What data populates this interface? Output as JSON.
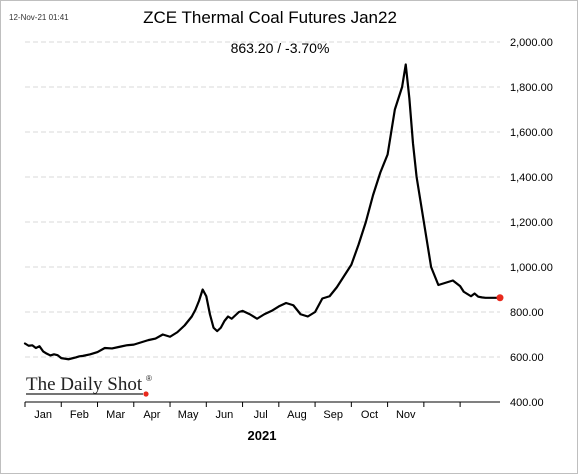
{
  "timestamp": "12-Nov-21 01:41",
  "chart_data": {
    "type": "line",
    "title": "ZCE Thermal Coal Futures Jan22",
    "subtitle": "863.20  /  -3.70%",
    "xlabel": "2021",
    "ylabel": "",
    "ylim": [
      400,
      2000
    ],
    "yticks": [
      400,
      600,
      800,
      1000,
      1200,
      1400,
      1600,
      1800,
      2000
    ],
    "ytick_labels": [
      "400.00",
      "600.00",
      "800.00",
      "1,000.00",
      "1,200.00",
      "1,400.00",
      "1,600.00",
      "1,800.00",
      "2,000.00"
    ],
    "xlim": [
      0,
      13.1
    ],
    "xticks": [
      0,
      1,
      2,
      3,
      4,
      5,
      6,
      7,
      8,
      9,
      10,
      11,
      12
    ],
    "month_labels": [
      "Jan",
      "Feb",
      "Mar",
      "Apr",
      "May",
      "Jun",
      "Jul",
      "Aug",
      "Sep",
      "Oct",
      "Nov"
    ],
    "grid": "horizontal",
    "colors": {
      "line": "#000000",
      "last_point": "#e8291c",
      "grid": "#d9d9d9",
      "axis": "#000000"
    },
    "series": [
      {
        "x": [
          0.0,
          0.1,
          0.2,
          0.3,
          0.4,
          0.5,
          0.6,
          0.7,
          0.8,
          0.9,
          1.0,
          1.2,
          1.4,
          1.5,
          1.6,
          1.8,
          2.0,
          2.2,
          2.4,
          2.6,
          2.8,
          3.0,
          3.2,
          3.4,
          3.6,
          3.8,
          4.0,
          4.2,
          4.4,
          4.6,
          4.7,
          4.8,
          4.9,
          5.0,
          5.1,
          5.2,
          5.3,
          5.4,
          5.5,
          5.6,
          5.7,
          5.8,
          5.9,
          6.0,
          6.2,
          6.4,
          6.6,
          6.8,
          7.0,
          7.2,
          7.4,
          7.6,
          7.8,
          8.0,
          8.2,
          8.4,
          8.6,
          8.8,
          9.0,
          9.2,
          9.4,
          9.6,
          9.8,
          10.0,
          10.2,
          10.4,
          10.5,
          10.6,
          10.7,
          10.8,
          10.9,
          11.0,
          11.1,
          11.2,
          11.4,
          11.6,
          11.8,
          12.0,
          12.1,
          12.2,
          12.3,
          12.4,
          12.5,
          12.6,
          12.7,
          12.8,
          12.9,
          13.0,
          13.1
        ],
        "values": [
          660,
          650,
          652,
          640,
          648,
          625,
          615,
          607,
          612,
          608,
          595,
          590,
          598,
          603,
          605,
          612,
          622,
          640,
          638,
          645,
          652,
          655,
          665,
          675,
          682,
          700,
          690,
          710,
          740,
          780,
          810,
          850,
          900,
          870,
          790,
          730,
          715,
          730,
          760,
          780,
          770,
          785,
          800,
          805,
          790,
          770,
          790,
          805,
          825,
          840,
          830,
          790,
          780,
          800,
          860,
          870,
          910,
          960,
          1010,
          1100,
          1200,
          1320,
          1420,
          1500,
          1700,
          1800,
          1900,
          1750,
          1550,
          1400,
          1300,
          1200,
          1100,
          1000,
          920,
          930,
          940,
          915,
          890,
          880,
          870,
          882,
          868,
          865,
          863,
          863,
          863,
          863,
          863.2
        ]
      }
    ]
  }
}
